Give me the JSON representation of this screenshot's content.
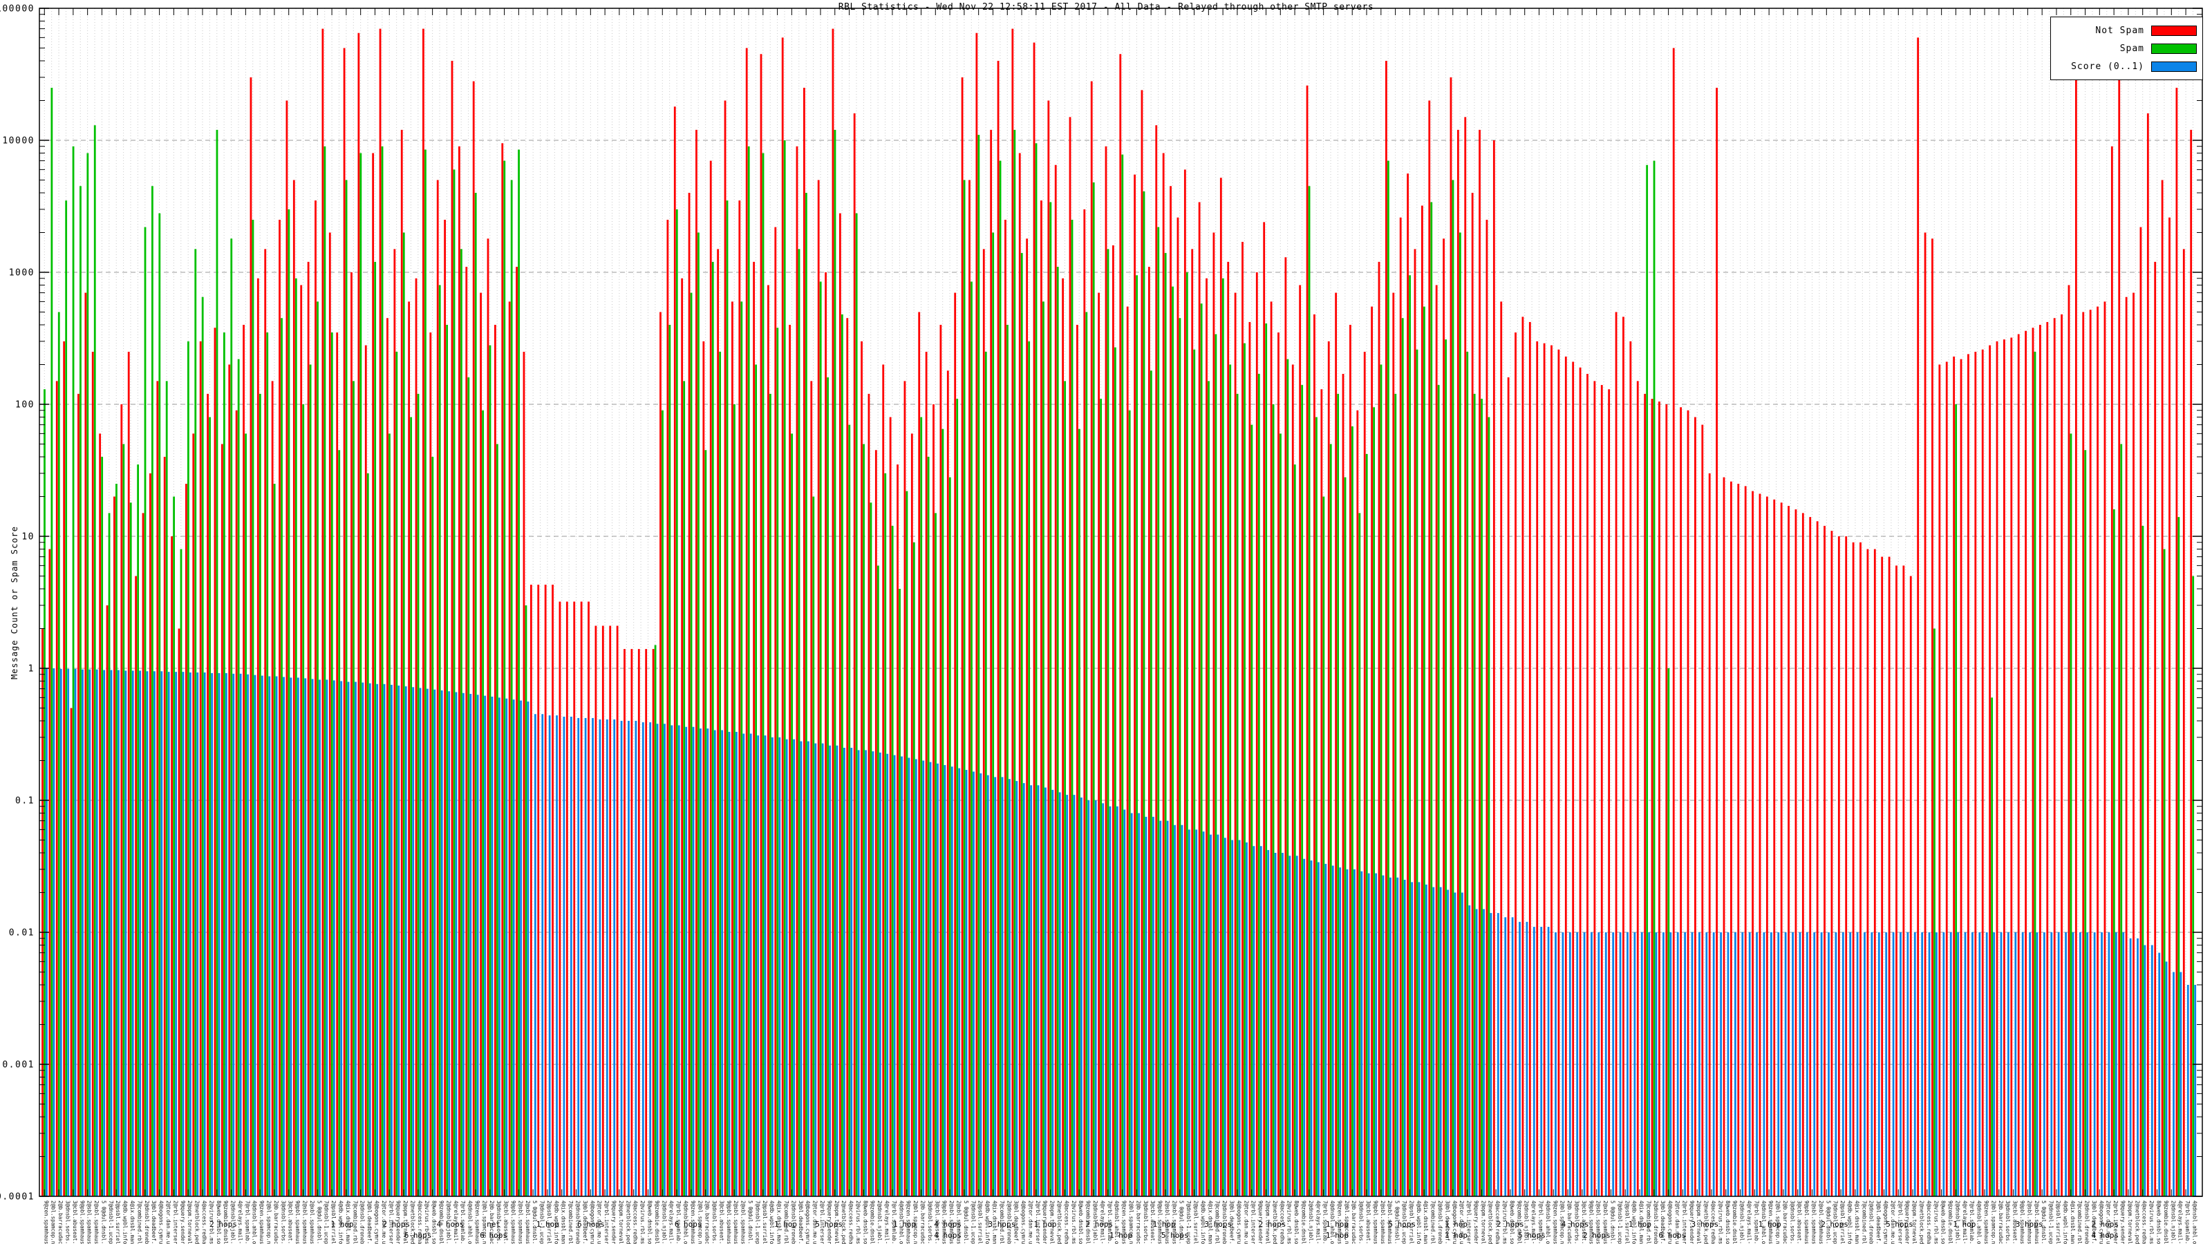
{
  "title": "RBL Statistics - Wed Nov 22 12:58:11 EST 2017 - All Data - Relayed through other SMTP servers",
  "legend": {
    "items": [
      {
        "label": "Not Spam",
        "color": "#ff0000"
      },
      {
        "label": "Spam",
        "color": "#00c000"
      },
      {
        "label": "Score (0..1)",
        "color": "#0b84e8"
      }
    ]
  },
  "y_axis": {
    "label": "Message Count or Spam Score",
    "tick_labels": [
      "100000",
      "10000",
      "1000",
      "100",
      "10",
      "1",
      "0.1",
      "0.01",
      "0.001",
      "0.0001"
    ]
  },
  "x_axis": {
    "tick_labels": [
      "9@zen.spamhaus.org 1 hop",
      "2@bl.spamcop.net 2 hops",
      "2@b.barracudacentral.org 3 hops",
      "3@dnsbl.sorbs.net 1 hop",
      "3@cbl.abuseat.org 4 hops",
      "9@pbl.spamhaus.org 2 hops",
      "2@sbl.spamhaus.org 1 hop",
      "2@xbl.spamhaus.org 6 hops",
      "5 0@dul.dnsbl.sorbs.net 2 hops",
      "7@dnsbl-1.uceprotect.net 1 hop",
      "2@psbl.surriel.com 5 hops",
      "4@db.wpbl.info 2 hops",
      "4@ix.dnsbl.manitu.net 1 hop",
      "7@combined.rbl.msrbl.net 3 hops",
      "2@dnsbl.dronebl.org 1 hop",
      "3@bl.deadbeef.com 2 hops",
      "4@bogons.cymru.com 6 hops",
      "2@tor.dan.me.uk 1 hop",
      "2@rbl.interserver.net 4 hops",
      "9@query.senderbase.org 1 hop",
      "2@opm.tornevall.org 2 hops",
      "2@netblock.pedantic.org 5 hops",
      "4@access.redhawk.org 1 hop",
      "2@virus.rbl.msrbl.net 3 hops",
      "8@web.dnsbl.sorbs.net 2 hops",
      "9@zombie.dnsbl.sorbs.net 1 hop",
      "2@dnsbl.njabl.org 4 hops",
      "4@relays.mail-abuse.org 2 hops",
      "7@rbl.spamlab.com 1 hop",
      "4@dnsbl.ahbl.org 5 hops"
    ],
    "hops_row1": [
      {
        "x": 0.085,
        "text": "2 hops"
      },
      {
        "x": 0.14,
        "text": "1 hop"
      },
      {
        "x": 0.165,
        "text": "2 hops"
      },
      {
        "x": 0.19,
        "text": "4 hops"
      },
      {
        "x": 0.21,
        "text": "net"
      },
      {
        "x": 0.235,
        "text": "1 hop"
      },
      {
        "x": 0.255,
        "text": "6 hops"
      },
      {
        "x": 0.3,
        "text": "6 hops"
      },
      {
        "x": 0.345,
        "text": "1 hop"
      },
      {
        "x": 0.365,
        "text": "5 hops"
      },
      {
        "x": 0.4,
        "text": "1 hop"
      },
      {
        "x": 0.42,
        "text": "4 hops"
      },
      {
        "x": 0.445,
        "text": "3 hops"
      },
      {
        "x": 0.465,
        "text": "1 hop"
      },
      {
        "x": 0.49,
        "text": "2 hops"
      },
      {
        "x": 0.52,
        "text": "1 hop"
      },
      {
        "x": 0.545,
        "text": "3 hops"
      },
      {
        "x": 0.57,
        "text": "2 hops"
      },
      {
        "x": 0.6,
        "text": "1 hop"
      },
      {
        "x": 0.63,
        "text": "5 hops"
      },
      {
        "x": 0.655,
        "text": "1 hop"
      },
      {
        "x": 0.68,
        "text": "2 hops"
      },
      {
        "x": 0.71,
        "text": "4 hops"
      },
      {
        "x": 0.74,
        "text": "1 hop"
      },
      {
        "x": 0.77,
        "text": "3 hops"
      },
      {
        "x": 0.8,
        "text": "1 hop"
      },
      {
        "x": 0.83,
        "text": "2 hops"
      },
      {
        "x": 0.86,
        "text": "5 hops"
      },
      {
        "x": 0.89,
        "text": "1 hop"
      },
      {
        "x": 0.92,
        "text": "3 hops"
      },
      {
        "x": 0.955,
        "text": "2 hops"
      }
    ],
    "hops_row2": [
      {
        "x": 0.175,
        "text": "6 hops"
      },
      {
        "x": 0.21,
        "text": "6 hops"
      },
      {
        "x": 0.42,
        "text": "4 hops"
      },
      {
        "x": 0.5,
        "text": "1 hop"
      },
      {
        "x": 0.525,
        "text": "5 hops"
      },
      {
        "x": 0.6,
        "text": "1 hop"
      },
      {
        "x": 0.655,
        "text": "1 hop"
      },
      {
        "x": 0.69,
        "text": "5 hops"
      },
      {
        "x": 0.72,
        "text": "2 hops"
      },
      {
        "x": 0.755,
        "text": "6 hops"
      },
      {
        "x": 0.955,
        "text": "4 hops"
      }
    ]
  },
  "chart_data": {
    "type": "bar",
    "title": "RBL Statistics - Wed Nov 22 12:58:11 EST 2017 - All Data - Relayed through other SMTP servers",
    "ylabel": "Message Count or Spam Score",
    "y_scale": "log",
    "ylim": [
      0.0001,
      100000
    ],
    "grid": true,
    "legend_position": "top-right",
    "xtick_labels_cycled": true,
    "series": [
      {
        "name": "Not Spam",
        "color": "#ff0000",
        "values": [
          2,
          8,
          150,
          300,
          0.5,
          120,
          700,
          250,
          60,
          3,
          20,
          100,
          250,
          5,
          15,
          30,
          150,
          40,
          10,
          2,
          25,
          60,
          300,
          120,
          380,
          50,
          200,
          90,
          400,
          30000,
          900,
          1500,
          150,
          2500,
          20000,
          5000,
          800,
          1200,
          3500,
          70000,
          2000,
          350,
          50000,
          1000,
          65000,
          280,
          8000,
          70000,
          450,
          1500,
          12000,
          600,
          900,
          70000,
          350,
          5000,
          2500,
          40000,
          9000,
          1100,
          28000,
          700,
          1800,
          400,
          9500,
          600,
          1100,
          250,
          4.3,
          4.3,
          4.3,
          4.3,
          3.2,
          3.2,
          3.2,
          3.2,
          3.2,
          2.1,
          2.1,
          2.1,
          2.1,
          1.4,
          1.4,
          1.4,
          1.4,
          1.4,
          500,
          2500,
          18000,
          900,
          4000,
          12000,
          300,
          7000,
          1500,
          20000,
          600,
          3500,
          50000,
          1200,
          45000,
          800,
          2200,
          60000,
          400,
          9000,
          25000,
          150,
          5000,
          1000,
          70000,
          2800,
          450,
          16000,
          300,
          120,
          45,
          200,
          80,
          35,
          150,
          60,
          500,
          250,
          100,
          400,
          180,
          700,
          30000,
          5000,
          65000,
          1500,
          12000,
          40000,
          2500,
          70000,
          8000,
          1800,
          55000,
          3500,
          20000,
          6500,
          900,
          15000,
          400,
          3000,
          28000,
          700,
          9000,
          1600,
          45000,
          550,
          5500,
          24000,
          1100,
          13000,
          8000,
          4500,
          2600,
          6000,
          1500,
          3400,
          900,
          2000,
          5200,
          1200,
          700,
          1700,
          420,
          1000,
          2400,
          600,
          350,
          1300,
          200,
          800,
          26000,
          480,
          130,
          300,
          700,
          170,
          400,
          90,
          250,
          550,
          1200,
          40000,
          700,
          2600,
          5600,
          1500,
          3200,
          20000,
          800,
          1800,
          30000,
          12000,
          15000,
          4000,
          12000,
          2500,
          10000,
          600,
          160,
          350,
          460,
          420,
          300,
          290,
          280,
          260,
          230,
          210,
          190,
          170,
          150,
          140,
          130,
          500,
          460,
          300,
          150,
          120,
          110,
          105,
          100,
          50000,
          95,
          90,
          80,
          70,
          30,
          25000,
          28,
          26,
          25,
          24,
          22,
          21,
          20,
          19,
          18,
          17,
          16,
          15,
          14,
          13,
          12,
          11,
          10,
          10,
          9,
          9,
          8,
          8,
          7,
          7,
          6,
          6,
          5,
          60000,
          2000,
          1800,
          200,
          210,
          230,
          220,
          240,
          250,
          260,
          280,
          300,
          310,
          320,
          340,
          360,
          380,
          400,
          420,
          450,
          480,
          800,
          50000,
          500,
          520,
          550,
          600,
          9000,
          70000,
          650,
          700,
          2200,
          16000,
          1200,
          5000,
          2600,
          25000,
          1500,
          12000
        ]
      },
      {
        "name": "Spam",
        "color": "#00c000",
        "values": [
          130,
          25000,
          500,
          3500,
          9000,
          4500,
          8000,
          13000,
          40,
          15,
          25,
          50,
          18,
          35,
          2200,
          4500,
          2800,
          150,
          20,
          8,
          300,
          1500,
          650,
          80,
          12000,
          350,
          1800,
          220,
          60,
          2500,
          120,
          350,
          25,
          450,
          3000,
          900,
          100,
          200,
          600,
          9000,
          350,
          45,
          5000,
          150,
          8000,
          30,
          1200,
          9000,
          60,
          250,
          2000,
          80,
          120,
          8500,
          40,
          800,
          400,
          6000,
          1500,
          160,
          4000,
          90,
          280,
          50,
          7000,
          5000,
          8500,
          3,
          null,
          null,
          null,
          null,
          null,
          null,
          null,
          null,
          null,
          null,
          null,
          null,
          null,
          null,
          null,
          null,
          null,
          1.5,
          90,
          400,
          3000,
          150,
          700,
          2000,
          45,
          1200,
          250,
          3500,
          100,
          600,
          9000,
          200,
          8000,
          120,
          380,
          10000,
          60,
          1500,
          4000,
          20,
          850,
          160,
          12000,
          480,
          70,
          2800,
          50,
          18,
          6,
          30,
          12,
          4,
          22,
          9,
          80,
          40,
          15,
          65,
          28,
          110,
          5000,
          850,
          11000,
          250,
          2000,
          7000,
          400,
          12000,
          1400,
          300,
          9500,
          600,
          3400,
          1100,
          150,
          2500,
          65,
          500,
          4800,
          110,
          1500,
          270,
          7800,
          90,
          950,
          4100,
          180,
          2200,
          1400,
          780,
          450,
          1000,
          260,
          580,
          150,
          340,
          900,
          200,
          120,
          290,
          70,
          170,
          410,
          100,
          60,
          220,
          35,
          140,
          4500,
          80,
          20,
          50,
          120,
          28,
          68,
          15,
          42,
          95,
          200,
          7000,
          120,
          450,
          950,
          260,
          550,
          3400,
          140,
          310,
          5000,
          2000,
          250,
          120,
          110,
          80,
          null,
          null,
          null,
          null,
          null,
          null,
          null,
          null,
          null,
          null,
          null,
          null,
          null,
          null,
          null,
          null,
          null,
          null,
          null,
          null,
          null,
          6500,
          7000,
          null,
          1,
          null,
          null,
          null,
          null,
          null,
          null,
          null,
          null,
          null,
          null,
          null,
          null,
          null,
          null,
          null,
          null,
          null,
          null,
          null,
          null,
          null,
          null,
          null,
          null,
          null,
          null,
          null,
          null,
          null,
          null,
          null,
          null,
          null,
          null,
          null,
          null,
          2,
          null,
          null,
          100,
          null,
          null,
          null,
          null,
          0.6,
          null,
          null,
          null,
          null,
          null,
          250,
          null,
          null,
          null,
          null,
          60,
          null,
          45,
          null,
          null,
          null,
          16,
          50,
          null,
          null,
          12,
          null,
          null,
          8,
          null,
          14,
          null,
          5
        ]
      },
      {
        "name": "Score (0..1)",
        "color": "#0b84e8",
        "values": [
          1,
          1,
          0.99,
          0.99,
          0.99,
          0.98,
          0.98,
          0.98,
          0.97,
          0.97,
          0.97,
          0.96,
          0.96,
          0.96,
          0.95,
          0.95,
          0.95,
          0.94,
          0.94,
          0.94,
          0.93,
          0.93,
          0.93,
          0.92,
          0.92,
          0.92,
          0.91,
          0.91,
          0.9,
          0.89,
          0.88,
          0.87,
          0.87,
          0.86,
          0.85,
          0.85,
          0.84,
          0.83,
          0.82,
          0.82,
          0.81,
          0.8,
          0.79,
          0.79,
          0.78,
          0.77,
          0.76,
          0.76,
          0.75,
          0.74,
          0.73,
          0.72,
          0.71,
          0.7,
          0.69,
          0.68,
          0.67,
          0.66,
          0.65,
          0.64,
          0.63,
          0.62,
          0.61,
          0.6,
          0.59,
          0.58,
          0.57,
          0.56,
          0.45,
          0.45,
          0.44,
          0.44,
          0.43,
          0.43,
          0.42,
          0.42,
          0.42,
          0.41,
          0.41,
          0.41,
          0.4,
          0.4,
          0.4,
          0.39,
          0.39,
          0.38,
          0.38,
          0.37,
          0.37,
          0.36,
          0.36,
          0.35,
          0.35,
          0.34,
          0.34,
          0.33,
          0.33,
          0.32,
          0.32,
          0.31,
          0.31,
          0.3,
          0.3,
          0.29,
          0.29,
          0.28,
          0.28,
          0.27,
          0.27,
          0.26,
          0.26,
          0.25,
          0.25,
          0.24,
          0.24,
          0.235,
          0.23,
          0.225,
          0.22,
          0.215,
          0.21,
          0.205,
          0.2,
          0.195,
          0.19,
          0.185,
          0.18,
          0.175,
          0.17,
          0.165,
          0.16,
          0.155,
          0.15,
          0.15,
          0.145,
          0.14,
          0.135,
          0.13,
          0.13,
          0.125,
          0.12,
          0.115,
          0.11,
          0.11,
          0.105,
          0.1,
          0.1,
          0.095,
          0.09,
          0.09,
          0.085,
          0.08,
          0.08,
          0.075,
          0.075,
          0.07,
          0.07,
          0.065,
          0.065,
          0.06,
          0.06,
          0.058,
          0.055,
          0.055,
          0.052,
          0.05,
          0.05,
          0.048,
          0.045,
          0.045,
          0.042,
          0.04,
          0.04,
          0.038,
          0.038,
          0.036,
          0.035,
          0.034,
          0.033,
          0.032,
          0.031,
          0.03,
          0.03,
          0.029,
          0.028,
          0.028,
          0.027,
          0.026,
          0.026,
          0.025,
          0.024,
          0.024,
          0.023,
          0.022,
          0.022,
          0.021,
          0.02,
          0.02,
          0.016,
          0.015,
          0.015,
          0.014,
          0.014,
          0.013,
          0.013,
          0.012,
          0.012,
          0.011,
          0.011,
          0.011,
          0.01,
          0.01,
          0.01,
          0.01,
          0.01,
          0.01,
          0.01,
          0.01,
          0.01,
          0.01,
          0.01,
          0.01,
          0.01,
          0.01,
          0.01,
          0.01,
          0.01,
          0.01,
          0.01,
          0.01,
          0.01,
          0.01,
          0.01,
          0.01,
          0.01,
          0.01,
          0.01,
          0.01,
          0.01,
          0.01,
          0.01,
          0.01,
          0.01,
          0.01,
          0.01,
          0.01,
          0.01,
          0.01,
          0.01,
          0.01,
          0.01,
          0.01,
          0.01,
          0.01,
          0.01,
          0.01,
          0.01,
          0.01,
          0.01,
          0.01,
          0.01,
          0.01,
          0.01,
          0.01,
          0.01,
          0.01,
          0.01,
          0.01,
          0.01,
          0.01,
          0.01,
          0.01,
          0.01,
          0.01,
          0.01,
          0.01,
          0.01,
          0.01,
          0.01,
          0.01,
          0.01,
          0.01,
          0.01,
          0.01,
          0.01,
          0.01,
          0.01,
          0.01,
          0.01,
          0.01,
          0.009,
          0.009,
          0.008,
          0.008,
          0.007,
          0.006,
          0.005,
          0.005,
          0.004,
          0.004
        ]
      }
    ]
  }
}
